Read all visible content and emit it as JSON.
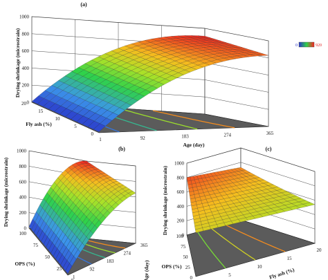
{
  "chart_data": [
    {
      "type": "surface",
      "panel_label": "(a)",
      "xlabel": "Age (day)",
      "ylabel": "Fly ash (%)",
      "zlabel": "Drying shrinkage (microstrain)",
      "x_ticks": [
        "1",
        "92",
        "183",
        "274",
        "365"
      ],
      "y_ticks": [
        "0",
        "5",
        "10",
        "15",
        "20"
      ],
      "z_ticks": [
        "0",
        "200",
        "400",
        "600",
        "800",
        "1000"
      ],
      "xlim": [
        1,
        365
      ],
      "ylim": [
        0,
        20
      ],
      "zlim": [
        0,
        1000
      ],
      "surface_points": [
        {
          "age": 1,
          "fly_ash": 0,
          "shrinkage": 40
        },
        {
          "age": 1,
          "fly_ash": 20,
          "shrinkage": 0
        },
        {
          "age": 183,
          "fly_ash": 0,
          "shrinkage": 620
        },
        {
          "age": 183,
          "fly_ash": 20,
          "shrinkage": 560
        },
        {
          "age": 365,
          "fly_ash": 0,
          "shrinkage": 880
        },
        {
          "age": 365,
          "fly_ash": 20,
          "shrinkage": 800
        }
      ],
      "colorbar": {
        "min_label": "0",
        "max_label": "920",
        "colors": [
          "#2a34c8",
          "#2fd24a",
          "#ff2020"
        ]
      }
    },
    {
      "type": "surface",
      "panel_label": "(b)",
      "xlabel": "Age (day)",
      "ylabel": "OPS (%)",
      "zlabel": "Drying shrinkage (microstrain)",
      "x_ticks": [
        "1",
        "92",
        "183",
        "274",
        "365"
      ],
      "y_ticks": [
        "0",
        "25",
        "50",
        "75",
        "100"
      ],
      "z_ticks": [
        "0",
        "200",
        "400",
        "600",
        "800",
        "1000"
      ],
      "xlim": [
        1,
        365
      ],
      "ylim": [
        0,
        100
      ],
      "zlim": [
        0,
        1000
      ],
      "surface_points": [
        {
          "age": 1,
          "ops": 100,
          "shrinkage": 40
        },
        {
          "age": 365,
          "ops": 100,
          "shrinkage": 980
        },
        {
          "age": 365,
          "ops": 0,
          "shrinkage": 640
        },
        {
          "age": 1,
          "ops": 0,
          "shrinkage": 20
        }
      ]
    },
    {
      "type": "surface",
      "panel_label": "(c)",
      "xlabel": "Fly ash (%)",
      "ylabel": "OPS (%)",
      "zlabel": "Drying shrinkage (microstrain)",
      "x_ticks": [
        "0",
        "5",
        "10",
        "15",
        "20"
      ],
      "y_ticks": [
        "0",
        "25",
        "50",
        "75",
        "100"
      ],
      "z_ticks": [
        "0",
        "200",
        "400",
        "600",
        "800",
        "1000"
      ],
      "xlim": [
        0,
        20
      ],
      "ylim": [
        0,
        100
      ],
      "zlim": [
        0,
        1000
      ],
      "surface_points": [
        {
          "fly_ash": 0,
          "ops": 100,
          "shrinkage": 820
        },
        {
          "fly_ash": 20,
          "ops": 100,
          "shrinkage": 760
        },
        {
          "fly_ash": 20,
          "ops": 0,
          "shrinkage": 560
        },
        {
          "fly_ash": 0,
          "ops": 0,
          "shrinkage": 620
        }
      ]
    }
  ]
}
